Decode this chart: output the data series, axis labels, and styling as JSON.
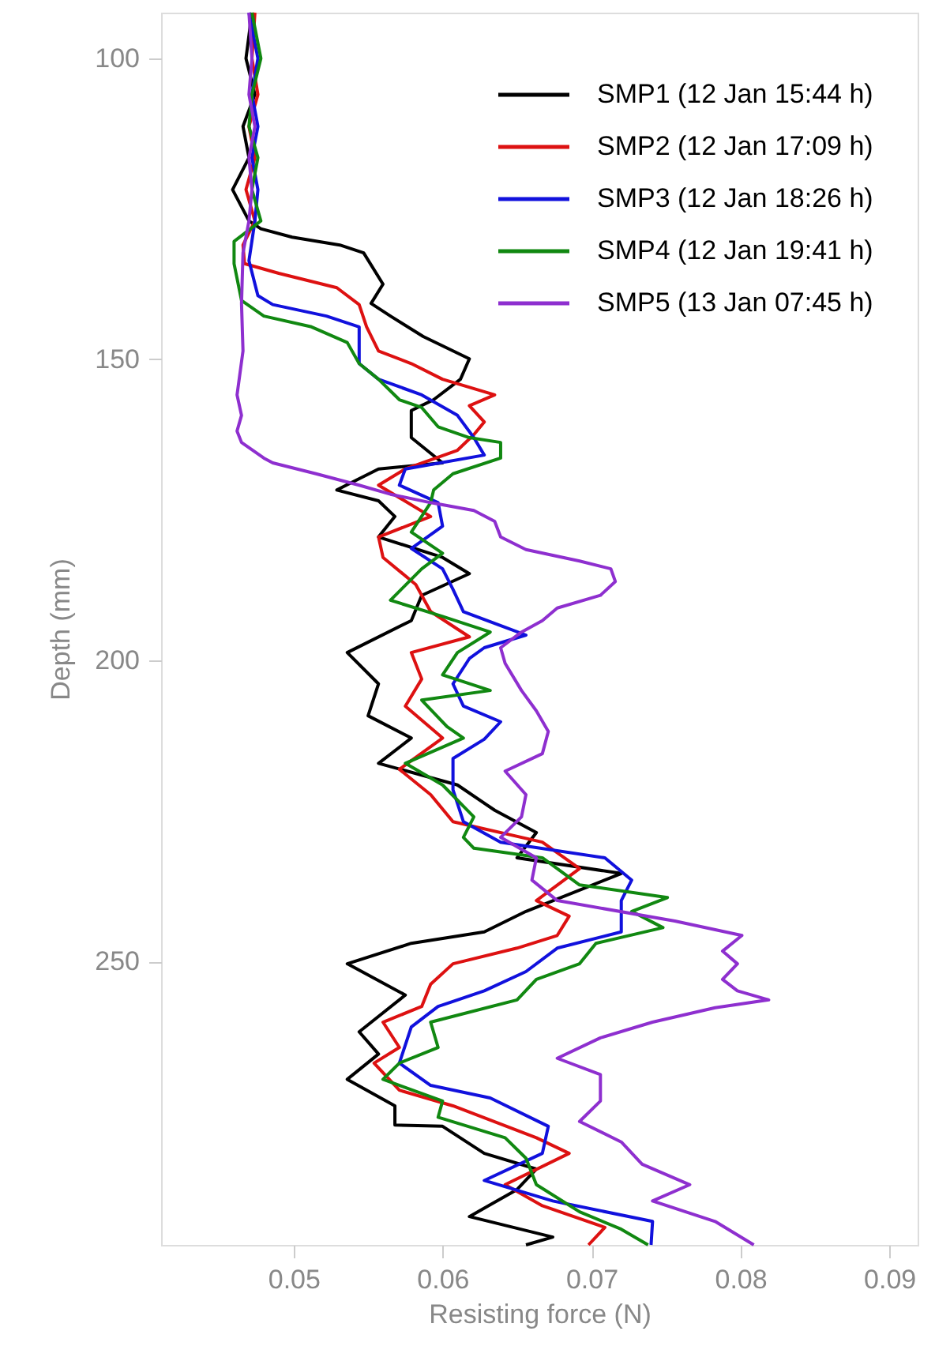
{
  "chart_data": {
    "type": "line",
    "xlabel": "Resisting force (N)",
    "ylabel": "Depth (mm)",
    "xlim": [
      0.0411,
      0.0919
    ],
    "xticks": [
      0.05,
      0.06,
      0.07,
      0.08,
      0.09
    ],
    "ylim": [
      297.1,
      92.4
    ],
    "yticks": [
      100,
      150,
      200,
      250
    ],
    "grid": false,
    "legend": "top right",
    "line_style": "solid",
    "series": [
      {
        "name": "SMP1 (12 Jan 15:44 h)",
        "color": "#000000",
        "x": [
          0.0472,
          0.0468,
          0.0474,
          0.0466,
          0.047,
          0.0459,
          0.047,
          0.0478,
          0.0499,
          0.0531,
          0.0547,
          0.056,
          0.0552,
          0.0565,
          0.0587,
          0.0618,
          0.0612,
          0.0594,
          0.0579,
          0.0579,
          0.06,
          0.0557,
          0.0529,
          0.0557,
          0.0568,
          0.0557,
          0.06,
          0.0618,
          0.0586,
          0.0579,
          0.0536,
          0.0557,
          0.055,
          0.0579,
          0.0557,
          0.061,
          0.0635,
          0.0663,
          0.065,
          0.072,
          0.0656,
          0.0628,
          0.0579,
          0.0536,
          0.0575,
          0.0544,
          0.0557,
          0.0536,
          0.0568,
          0.0568,
          0.06,
          0.0628,
          0.0663,
          0.065,
          0.0618,
          0.0674,
          0.0656
        ],
        "values": [
          92.4,
          100,
          106,
          111.3,
          116.5,
          121.8,
          127,
          128.3,
          129.7,
          131,
          132.3,
          137.5,
          140.7,
          142.8,
          146.2,
          149.9,
          153.3,
          156.7,
          158.5,
          163,
          167.2,
          168.2,
          171.7,
          173.5,
          176.1,
          179.5,
          182.9,
          185.6,
          189.2,
          193.4,
          198.7,
          203.9,
          209.2,
          212.9,
          217.1,
          220.7,
          224.9,
          228.6,
          232.8,
          235.4,
          241.7,
          245.1,
          247,
          250.4,
          255.6,
          261.7,
          265.4,
          269.6,
          274,
          277.2,
          277.4,
          281.9,
          284.5,
          287.9,
          292.4,
          295.8,
          297.1
        ]
      },
      {
        "name": "SMP2 (12 Jan 17:09 h)",
        "color": "#dd1111",
        "x": [
          0.0474,
          0.0472,
          0.0476,
          0.047,
          0.0474,
          0.0468,
          0.0474,
          0.0466,
          0.0467,
          0.049,
          0.0529,
          0.0544,
          0.0549,
          0.0557,
          0.0579,
          0.06,
          0.0635,
          0.0618,
          0.0628,
          0.0621,
          0.061,
          0.0575,
          0.0557,
          0.0592,
          0.0557,
          0.056,
          0.0582,
          0.0592,
          0.0618,
          0.0579,
          0.0586,
          0.0575,
          0.06,
          0.0571,
          0.0592,
          0.0607,
          0.0667,
          0.0692,
          0.0663,
          0.0685,
          0.0677,
          0.065,
          0.0607,
          0.0592,
          0.0586,
          0.056,
          0.0571,
          0.0554,
          0.0571,
          0.0607,
          0.0663,
          0.0685,
          0.0642,
          0.0667,
          0.0709,
          0.0698
        ],
        "values": [
          92.4,
          100,
          106,
          111.3,
          116.5,
          121.8,
          127,
          131,
          134.1,
          135.7,
          138.1,
          140.9,
          144.6,
          148.6,
          150.7,
          153.3,
          155.9,
          157.7,
          160.4,
          162.5,
          165.1,
          168.2,
          170.9,
          176.1,
          179.5,
          182.9,
          187.4,
          191.9,
          196.1,
          198.7,
          203.1,
          207.6,
          212.9,
          218.1,
          222.3,
          226.8,
          230.2,
          234.6,
          239.9,
          242.5,
          245.7,
          247.8,
          250.4,
          253.8,
          257.5,
          260.1,
          264.3,
          266.9,
          271.4,
          274,
          279.3,
          281.9,
          287.1,
          290.6,
          294.2,
          297.1
        ]
      },
      {
        "name": "SMP3 (12 Jan 18:26 h)",
        "color": "#1111dd",
        "x": [
          0.047,
          0.0476,
          0.0472,
          0.0476,
          0.0472,
          0.0476,
          0.0474,
          0.047,
          0.0476,
          0.0486,
          0.0522,
          0.0544,
          0.0544,
          0.0544,
          0.0557,
          0.0586,
          0.061,
          0.0621,
          0.0628,
          0.0575,
          0.0571,
          0.0597,
          0.06,
          0.0579,
          0.06,
          0.0607,
          0.0614,
          0.0642,
          0.0656,
          0.0628,
          0.0618,
          0.0607,
          0.0614,
          0.0639,
          0.0628,
          0.0607,
          0.0607,
          0.0614,
          0.0639,
          0.0709,
          0.0727,
          0.072,
          0.072,
          0.0677,
          0.0656,
          0.0628,
          0.0597,
          0.0579,
          0.0571,
          0.0592,
          0.0632,
          0.0671,
          0.0667,
          0.0628,
          0.0674,
          0.0741,
          0.074
        ],
        "values": [
          92.4,
          100,
          106,
          111.3,
          116.5,
          121.8,
          127,
          133.6,
          139.4,
          140.9,
          142.8,
          144.6,
          147.5,
          150.7,
          153.3,
          155.9,
          159.3,
          163,
          165.9,
          168.2,
          170.9,
          173.8,
          177.7,
          181.4,
          184.8,
          188.2,
          191.9,
          194.5,
          195.8,
          197.9,
          199.7,
          203.9,
          207.6,
          210.2,
          213.1,
          216.3,
          221.5,
          226.8,
          230.2,
          232.8,
          236.5,
          239.9,
          245.1,
          247.8,
          251.7,
          254.9,
          257.5,
          260.9,
          266.9,
          270.6,
          272.7,
          277.4,
          281.9,
          286.4,
          289.8,
          293.2,
          297.1
        ]
      },
      {
        "name": "SMP4 (12 Jan 19:41 h)",
        "color": "#118811",
        "x": [
          0.0472,
          0.0478,
          0.0472,
          0.047,
          0.0476,
          0.0472,
          0.0478,
          0.046,
          0.046,
          0.0465,
          0.048,
          0.0512,
          0.0536,
          0.0544,
          0.0557,
          0.0571,
          0.0586,
          0.0597,
          0.0618,
          0.0639,
          0.0639,
          0.0607,
          0.0594,
          0.0592,
          0.0579,
          0.06,
          0.0586,
          0.0565,
          0.06,
          0.0632,
          0.061,
          0.06,
          0.0632,
          0.0586,
          0.0603,
          0.0614,
          0.0575,
          0.06,
          0.0621,
          0.0614,
          0.0621,
          0.0667,
          0.0692,
          0.0751,
          0.0727,
          0.0748,
          0.0703,
          0.0692,
          0.0663,
          0.065,
          0.0592,
          0.0597,
          0.0571,
          0.056,
          0.06,
          0.0597,
          0.0642,
          0.0656,
          0.0663,
          0.0692,
          0.072,
          0.0738
        ],
        "values": [
          92.4,
          100,
          106,
          111.3,
          116.5,
          121.8,
          127,
          130.4,
          134.1,
          140.2,
          142.8,
          144.6,
          147.2,
          150.7,
          153.3,
          156.7,
          158,
          161.2,
          163,
          163.8,
          166.4,
          169,
          171.7,
          173.8,
          178.7,
          182.2,
          184.8,
          190,
          192.7,
          195.3,
          198.7,
          202.4,
          205,
          206.6,
          211,
          212.9,
          217.1,
          220.7,
          226,
          229.4,
          231.2,
          232.8,
          237.3,
          239.4,
          241.7,
          244.4,
          247,
          250.4,
          253,
          256.4,
          260.1,
          264.3,
          266.9,
          269.6,
          273.2,
          275.9,
          279.3,
          282.7,
          287.1,
          291.6,
          294.5,
          297.1
        ]
      },
      {
        "name": "SMP5 (13 Jan 07:45 h)",
        "color": "#8e2fcf",
        "x": [
          0.047,
          0.0472,
          0.047,
          0.0474,
          0.047,
          0.0472,
          0.047,
          0.0466,
          0.0465,
          0.0466,
          0.0462,
          0.0465,
          0.0462,
          0.0465,
          0.048,
          0.0486,
          0.0515,
          0.0544,
          0.0565,
          0.0592,
          0.0621,
          0.0635,
          0.0639,
          0.0656,
          0.0692,
          0.0713,
          0.0716,
          0.0706,
          0.0677,
          0.0667,
          0.0653,
          0.0639,
          0.0642,
          0.0653,
          0.0663,
          0.0671,
          0.0667,
          0.0642,
          0.0656,
          0.0653,
          0.0639,
          0.0663,
          0.066,
          0.0677,
          0.0756,
          0.0801,
          0.0788,
          0.0798,
          0.0788,
          0.0798,
          0.0819,
          0.0783,
          0.0741,
          0.0706,
          0.0677,
          0.0706,
          0.0706,
          0.0692,
          0.072,
          0.0734,
          0.0766,
          0.0741,
          0.0783,
          0.0809
        ],
        "values": [
          92.4,
          100,
          106,
          111.3,
          116.5,
          121.8,
          127,
          132.3,
          140.7,
          148.6,
          155.9,
          159.3,
          161.9,
          163.8,
          166.4,
          167.2,
          169,
          170.9,
          172.4,
          173.8,
          175.1,
          176.9,
          179.5,
          181.6,
          183.5,
          184.8,
          186.9,
          189.2,
          191.3,
          193.4,
          195.3,
          197.9,
          200.5,
          205,
          208.4,
          211.8,
          215.5,
          218.4,
          222.3,
          226,
          229.4,
          232.8,
          236.5,
          239.9,
          243.3,
          245.7,
          248.3,
          250.4,
          253,
          254.9,
          256.4,
          257.7,
          260.1,
          262.7,
          266.1,
          268.8,
          273.2,
          276.6,
          280,
          283.7,
          287.1,
          289.8,
          293.2,
          297.1
        ]
      }
    ]
  }
}
